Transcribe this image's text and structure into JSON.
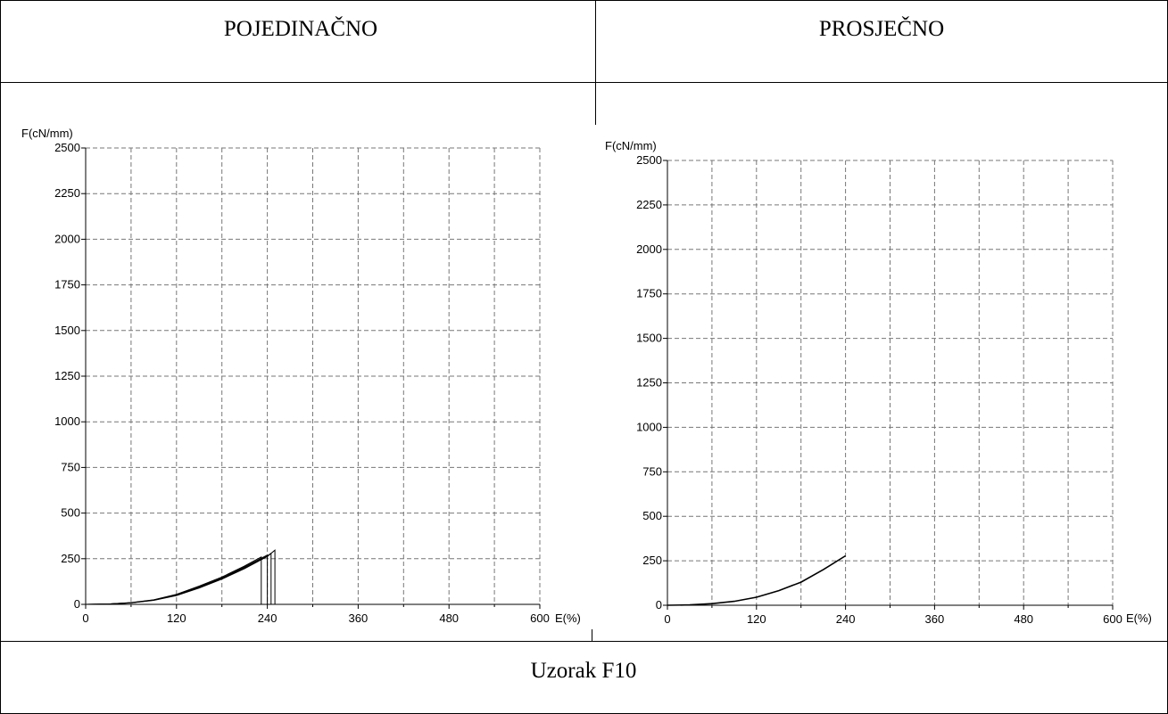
{
  "table": {
    "header_left": "POJEDINAČNO",
    "header_right": "PROSJEČNO",
    "footer": "Uzorak F10"
  },
  "chart_data": [
    {
      "type": "line",
      "title": "",
      "xlabel": "E(%)",
      "ylabel": "F(cN/mm)",
      "xlim": [
        0,
        600
      ],
      "ylim": [
        0,
        2500
      ],
      "x_ticks": [
        0,
        120,
        240,
        360,
        480,
        600
      ],
      "y_ticks": [
        0,
        250,
        500,
        750,
        1000,
        1250,
        1500,
        1750,
        2000,
        2250,
        2500
      ],
      "grid": true,
      "series": [
        {
          "x": [
            0,
            30,
            60,
            90,
            120,
            150,
            180,
            210,
            232,
            232
          ],
          "y": [
            0,
            2,
            10,
            25,
            55,
            100,
            150,
            210,
            260,
            0
          ]
        },
        {
          "x": [
            0,
            30,
            60,
            90,
            120,
            150,
            180,
            210,
            240,
            240
          ],
          "y": [
            0,
            2,
            9,
            24,
            52,
            96,
            145,
            205,
            270,
            0
          ]
        },
        {
          "x": [
            0,
            30,
            60,
            90,
            120,
            150,
            180,
            210,
            240,
            245,
            245
          ],
          "y": [
            0,
            2,
            9,
            23,
            50,
            93,
            142,
            200,
            265,
            280,
            0
          ]
        },
        {
          "x": [
            0,
            30,
            60,
            90,
            120,
            150,
            180,
            210,
            240,
            250,
            250
          ],
          "y": [
            0,
            2,
            8,
            22,
            48,
            90,
            138,
            196,
            262,
            297,
            0
          ]
        }
      ]
    },
    {
      "type": "line",
      "title": "",
      "xlabel": "E(%)",
      "ylabel": "F(cN/mm)",
      "xlim": [
        0,
        600
      ],
      "ylim": [
        0,
        2500
      ],
      "x_ticks": [
        0,
        120,
        240,
        360,
        480,
        600
      ],
      "y_ticks": [
        0,
        250,
        500,
        750,
        1000,
        1250,
        1500,
        1750,
        2000,
        2250,
        2500
      ],
      "grid": true,
      "series": [
        {
          "x": [
            0,
            30,
            60,
            90,
            120,
            150,
            180,
            210,
            240
          ],
          "y": [
            0,
            2,
            9,
            22,
            45,
            82,
            130,
            200,
            278
          ]
        }
      ]
    }
  ]
}
